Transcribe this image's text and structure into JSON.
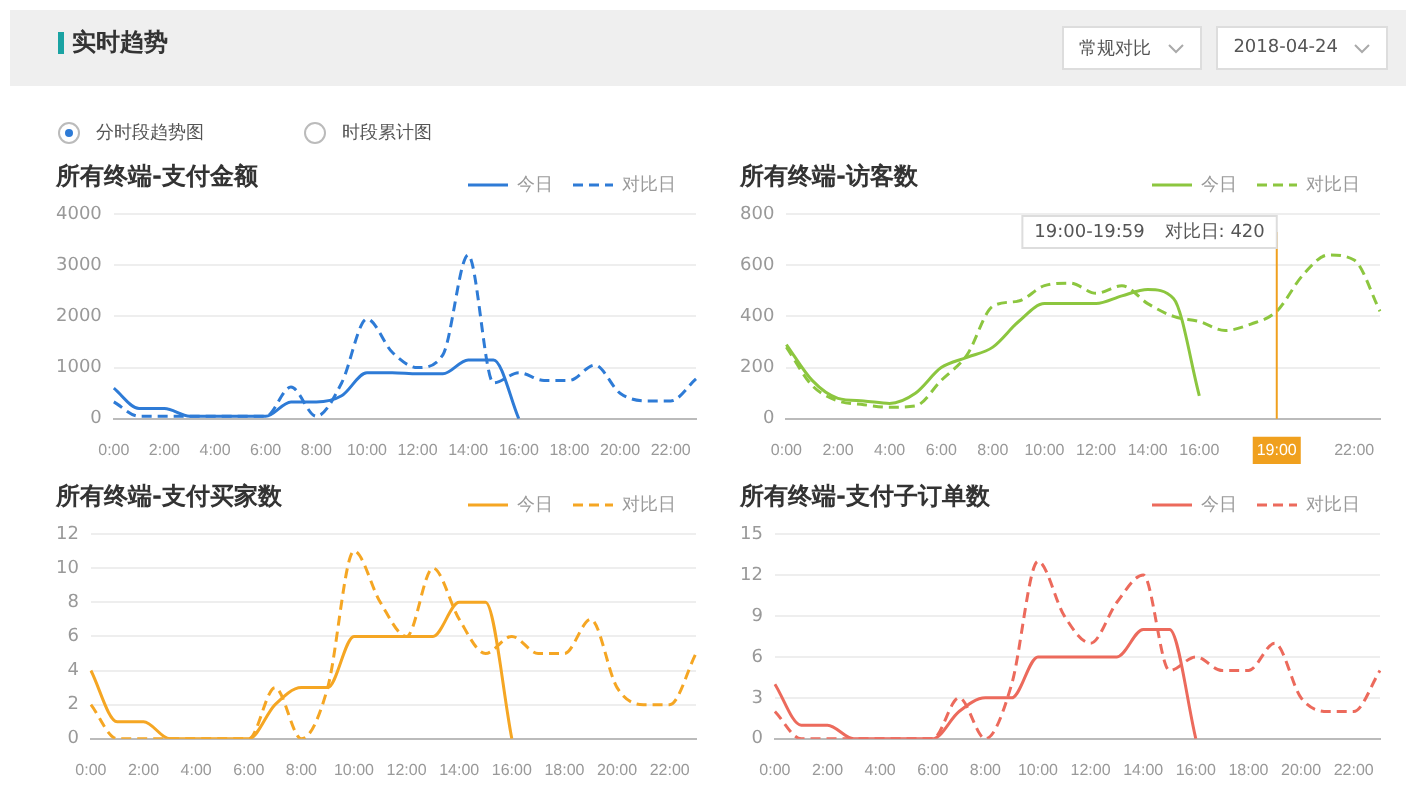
{
  "chart_data": [
    {
      "type": "other",
      "title": "实时趋势",
      "annotations": [
        "常规对比",
        "2018-04-24",
        "分时段趋势图",
        "时段累计图"
      ]
    },
    {
      "type": "line",
      "title": "所有终端-支付金额",
      "categories": [
        "0:00",
        null,
        "2:00",
        null,
        "4:00",
        null,
        "6:00",
        null,
        "8:00",
        null,
        "10:00",
        null,
        "12:00",
        null,
        "14:00",
        null,
        "16:00",
        null,
        "18:00",
        null,
        "20:00",
        null,
        "22:00",
        null
      ],
      "ylim": [
        0,
        4000
      ],
      "yticks": [
        0,
        1000,
        2000,
        3000,
        4000
      ],
      "grid": "y",
      "legend": "top right",
      "marker": "none",
      "series": [
        {
          "name": "今日",
          "color": "#2e7bd6",
          "line_style": "solid",
          "values": [
            600,
            200,
            200,
            50,
            50,
            50,
            50,
            330,
            330,
            450,
            900,
            900,
            880,
            880,
            1150,
            1150,
            0,
            null,
            null,
            null,
            null,
            null,
            null,
            null
          ]
        },
        {
          "name": "对比日",
          "color": "#2e7bd6",
          "line_style": "dashed",
          "values": [
            330,
            50,
            50,
            50,
            50,
            50,
            50,
            620,
            50,
            700,
            1950,
            1300,
            1000,
            1250,
            3200,
            700,
            900,
            750,
            750,
            1050,
            500,
            350,
            350,
            780
          ]
        }
      ]
    },
    {
      "type": "line",
      "title": "所有终端-访客数",
      "categories": [
        "0:00",
        null,
        "2:00",
        null,
        "4:00",
        null,
        "6:00",
        null,
        "8:00",
        null,
        "10:00",
        null,
        "12:00",
        null,
        "14:00",
        null,
        "16:00",
        null,
        null,
        "19:00",
        null,
        null,
        "22:00",
        null
      ],
      "ylim": [
        0,
        800
      ],
      "yticks": [
        0,
        200,
        400,
        600,
        800
      ],
      "grid": "y",
      "legend": "top right",
      "marker": "none",
      "annotations": [
        "19:00-19:59",
        "对比日: 420"
      ],
      "ref_lines": [
        {
          "axis": "x",
          "value": "19:00",
          "color": "#f0a01e"
        }
      ],
      "series": [
        {
          "name": "今日",
          "color": "#8cc63f",
          "line_style": "solid",
          "values": [
            290,
            150,
            80,
            70,
            60,
            100,
            200,
            240,
            280,
            380,
            450,
            450,
            450,
            480,
            505,
            470,
            90,
            null,
            null,
            null,
            null,
            null,
            null,
            null
          ]
        },
        {
          "name": "对比日",
          "color": "#8cc63f",
          "line_style": "dashed",
          "values": [
            280,
            130,
            70,
            55,
            45,
            50,
            150,
            250,
            440,
            460,
            520,
            530,
            490,
            520,
            450,
            400,
            380,
            345,
            370,
            420,
            560,
            640,
            620,
            420
          ]
        }
      ]
    },
    {
      "type": "line",
      "title": "所有终端-支付买家数",
      "categories": [
        "0:00",
        null,
        "2:00",
        null,
        "4:00",
        null,
        "6:00",
        null,
        "8:00",
        null,
        "10:00",
        null,
        "12:00",
        null,
        "14:00",
        null,
        "16:00",
        null,
        "18:00",
        null,
        "20:00",
        null,
        "22:00",
        null
      ],
      "ylim": [
        0,
        12
      ],
      "yticks": [
        0,
        2,
        4,
        6,
        8,
        10,
        12
      ],
      "grid": "y",
      "legend": "top right",
      "marker": "none",
      "series": [
        {
          "name": "今日",
          "color": "#f5a623",
          "line_style": "solid",
          "values": [
            4,
            1,
            1,
            0,
            0,
            0,
            0,
            2,
            3,
            3,
            6,
            6,
            6,
            6,
            8,
            8,
            0,
            null,
            null,
            null,
            null,
            null,
            null,
            null
          ]
        },
        {
          "name": "对比日",
          "color": "#f5a623",
          "line_style": "dashed",
          "values": [
            2,
            0,
            0,
            0,
            0,
            0,
            0,
            3,
            0,
            3,
            11,
            8,
            6,
            10,
            7,
            5,
            6,
            5,
            5,
            7,
            3,
            2,
            2,
            5
          ]
        }
      ]
    },
    {
      "type": "line",
      "title": "所有终端-支付子订单数",
      "categories": [
        "0:00",
        null,
        "2:00",
        null,
        "4:00",
        null,
        "6:00",
        null,
        "8:00",
        null,
        "10:00",
        null,
        "12:00",
        null,
        "14:00",
        null,
        "16:00",
        null,
        "18:00",
        null,
        "20:00",
        null,
        "22:00",
        null
      ],
      "ylim": [
        0,
        15
      ],
      "yticks": [
        0,
        3,
        6,
        9,
        12,
        15
      ],
      "grid": "y",
      "legend": "top right",
      "marker": "none",
      "series": [
        {
          "name": "今日",
          "color": "#ec6a5c",
          "line_style": "solid",
          "values": [
            4,
            1,
            1,
            0,
            0,
            0,
            0,
            2,
            3,
            3,
            6,
            6,
            6,
            6,
            8,
            8,
            0,
            null,
            null,
            null,
            null,
            null,
            null,
            null
          ]
        },
        {
          "name": "对比日",
          "color": "#ec6a5c",
          "line_style": "dashed",
          "values": [
            2,
            0,
            0,
            0,
            0,
            0,
            0,
            3,
            0,
            4,
            13,
            9,
            7,
            10,
            12,
            5,
            6,
            5,
            5,
            7,
            3,
            2,
            2,
            5
          ]
        }
      ]
    }
  ]
}
